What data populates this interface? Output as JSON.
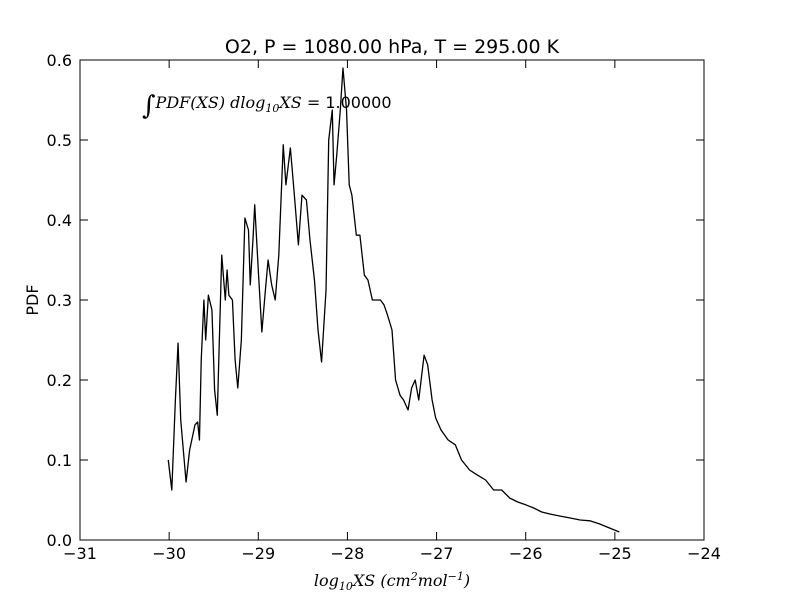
{
  "chart_data": {
    "type": "line",
    "title": "O2, P = 1080.00 hPa, T = 295.00 K",
    "xlabel": [
      "log",
      "10",
      "XS (cm",
      "2",
      "mol",
      "−1",
      ")"
    ],
    "ylabel": "PDF",
    "annotation": [
      "∫",
      "PDF(XS) dlog",
      "10",
      "XS = ",
      "1.00000"
    ],
    "xlim": [
      -31,
      -24
    ],
    "ylim": [
      0,
      0.6
    ],
    "xticks": [
      {
        "value": -31,
        "label": "−31"
      },
      {
        "value": -30,
        "label": "−30"
      },
      {
        "value": -29,
        "label": "−29"
      },
      {
        "value": -28,
        "label": "−28"
      },
      {
        "value": -27,
        "label": "−27"
      },
      {
        "value": -26,
        "label": "−26"
      },
      {
        "value": -25,
        "label": "−25"
      },
      {
        "value": -24,
        "label": "−24"
      }
    ],
    "yticks": [
      {
        "value": 0,
        "label": "0.0"
      },
      0.1,
      0.2,
      0.3,
      0.4,
      0.5,
      0.6
    ],
    "grid": false,
    "series": [
      {
        "name": "PDF",
        "color": "#000000",
        "x": [
          -30.01,
          -29.97,
          -29.93,
          -29.9,
          -29.87,
          -29.81,
          -29.77,
          -29.71,
          -29.68,
          -29.66,
          -29.64,
          -29.61,
          -29.59,
          -29.56,
          -29.52,
          -29.49,
          -29.46,
          -29.44,
          -29.41,
          -29.37,
          -29.35,
          -29.33,
          -29.29,
          -29.26,
          -29.23,
          -29.19,
          -29.15,
          -29.11,
          -29.09,
          -29.06,
          -29.04,
          -29.0,
          -28.96,
          -28.92,
          -28.89,
          -28.85,
          -28.81,
          -28.77,
          -28.72,
          -28.69,
          -28.64,
          -28.6,
          -28.55,
          -28.51,
          -28.46,
          -28.42,
          -28.37,
          -28.33,
          -28.29,
          -28.24,
          -28.21,
          -28.17,
          -28.15,
          -28.12,
          -28.08,
          -28.05,
          -28.01,
          -27.98,
          -27.95,
          -27.9,
          -27.86,
          -27.81,
          -27.77,
          -27.72,
          -27.68,
          -27.63,
          -27.59,
          -27.55,
          -27.5,
          -27.46,
          -27.41,
          -27.37,
          -27.32,
          -27.28,
          -27.24,
          -27.2,
          -27.14,
          -27.1,
          -27.05,
          -27.01,
          -26.95,
          -26.87,
          -26.79,
          -26.72,
          -26.63,
          -26.54,
          -26.45,
          -26.36,
          -26.27,
          -26.18,
          -26.09,
          -26.0,
          -25.91,
          -25.82,
          -25.73,
          -25.62,
          -25.5,
          -25.39,
          -25.28,
          -25.17,
          -25.06,
          -24.95
        ],
        "values": [
          0.1,
          0.0625,
          0.175,
          0.246,
          0.15,
          0.0725,
          0.1125,
          0.144,
          0.1475,
          0.125,
          0.225,
          0.3,
          0.25,
          0.306,
          0.2875,
          0.1875,
          0.156,
          0.2375,
          0.356,
          0.3,
          0.3375,
          0.306,
          0.3,
          0.225,
          0.19,
          0.25,
          0.4025,
          0.3875,
          0.319,
          0.375,
          0.419,
          0.3375,
          0.26,
          0.3125,
          0.35,
          0.319,
          0.3,
          0.356,
          0.494,
          0.444,
          0.49,
          0.4375,
          0.369,
          0.431,
          0.425,
          0.375,
          0.325,
          0.2625,
          0.2225,
          0.3125,
          0.5,
          0.5375,
          0.444,
          0.481,
          0.5375,
          0.59,
          0.5375,
          0.444,
          0.431,
          0.381,
          0.381,
          0.331,
          0.325,
          0.3,
          0.3,
          0.3,
          0.294,
          0.281,
          0.2625,
          0.2,
          0.181,
          0.175,
          0.1625,
          0.19,
          0.2,
          0.175,
          0.231,
          0.219,
          0.175,
          0.1525,
          0.1375,
          0.125,
          0.119,
          0.1,
          0.0875,
          0.081,
          0.075,
          0.0625,
          0.0625,
          0.0525,
          0.0475,
          0.044,
          0.04,
          0.035,
          0.0325,
          0.03,
          0.0275,
          0.025,
          0.024,
          0.02,
          0.015,
          0.01
        ]
      }
    ]
  }
}
